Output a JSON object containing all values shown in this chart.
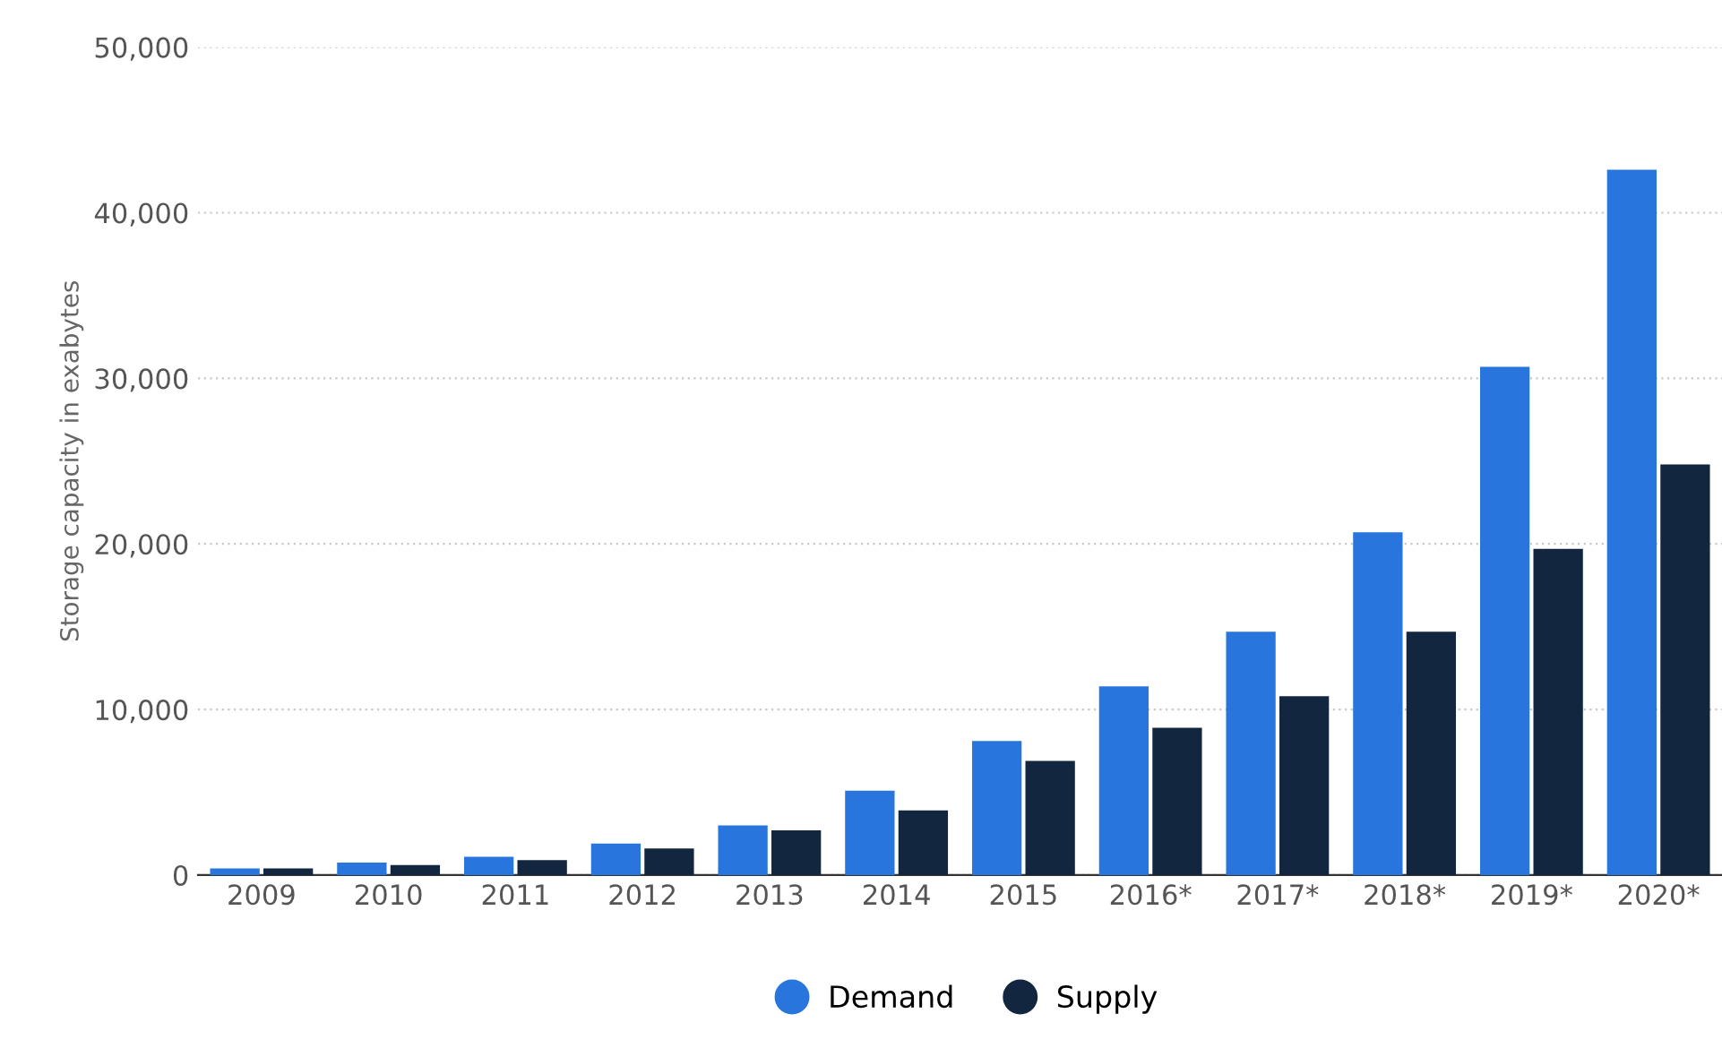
{
  "chart_data": {
    "type": "bar",
    "ylabel": "Storage capacity in exabytes",
    "categories": [
      "2009",
      "2010",
      "2011",
      "2012",
      "2013",
      "2014",
      "2015",
      "2016*",
      "2017*",
      "2018*",
      "2019*",
      "2020*"
    ],
    "series": [
      {
        "name": "Demand",
        "color": "#2876dd",
        "values": [
          400,
          750,
          1100,
          1900,
          3000,
          5100,
          8100,
          11400,
          14700,
          20700,
          30700,
          42600
        ]
      },
      {
        "name": "Supply",
        "color": "#12263f",
        "values": [
          400,
          600,
          900,
          1600,
          2700,
          3900,
          6900,
          8900,
          10800,
          14700,
          19700,
          24800
        ]
      }
    ],
    "ylim": [
      0,
      50000
    ],
    "yticks": [
      {
        "value": 0,
        "label": "0"
      },
      {
        "value": 10000,
        "label": "10,000"
      },
      {
        "value": 20000,
        "label": "20,000"
      },
      {
        "value": 30000,
        "label": "30,000"
      },
      {
        "value": 40000,
        "label": "40,000"
      },
      {
        "value": 50000,
        "label": "50,000"
      }
    ],
    "grid": "y",
    "legend": "bottom"
  }
}
